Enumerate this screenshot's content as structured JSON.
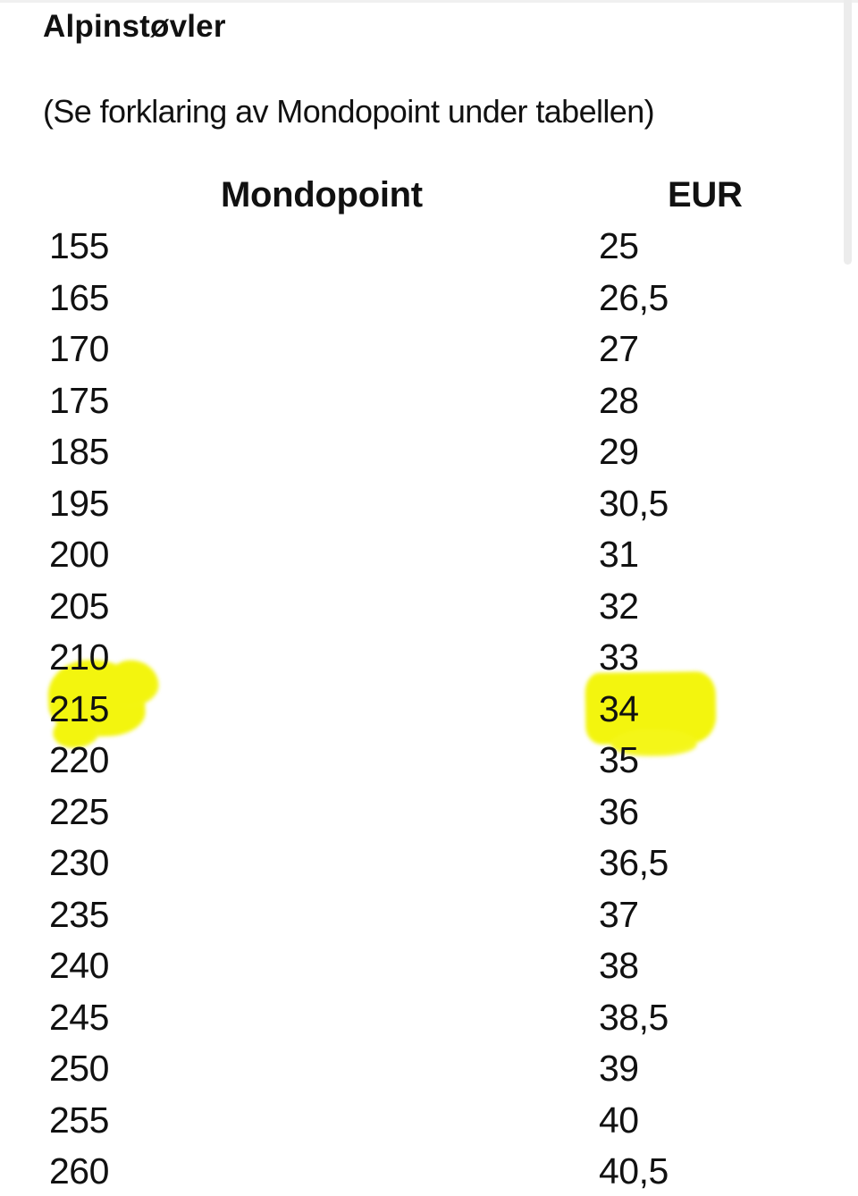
{
  "page": {
    "title": "Alpinstøvler",
    "subtitle": "(Se forklaring av Mondopoint under tabellen)"
  },
  "table": {
    "columns": [
      "Mondopoint",
      "EUR"
    ],
    "rows": [
      {
        "mondopoint": "155",
        "eur": "25",
        "highlighted": false
      },
      {
        "mondopoint": "165",
        "eur": "26,5",
        "highlighted": false
      },
      {
        "mondopoint": "170",
        "eur": "27",
        "highlighted": false
      },
      {
        "mondopoint": "175",
        "eur": "28",
        "highlighted": false
      },
      {
        "mondopoint": "185",
        "eur": "29",
        "highlighted": false
      },
      {
        "mondopoint": "195",
        "eur": "30,5",
        "highlighted": false
      },
      {
        "mondopoint": "200",
        "eur": "31",
        "highlighted": false
      },
      {
        "mondopoint": "205",
        "eur": "32",
        "highlighted": false
      },
      {
        "mondopoint": "210",
        "eur": "33",
        "highlighted": false
      },
      {
        "mondopoint": "215",
        "eur": "34",
        "highlighted": true
      },
      {
        "mondopoint": "220",
        "eur": "35",
        "highlighted": false
      },
      {
        "mondopoint": "225",
        "eur": "36",
        "highlighted": false
      },
      {
        "mondopoint": "230",
        "eur": "36,5",
        "highlighted": false
      },
      {
        "mondopoint": "235",
        "eur": "37",
        "highlighted": false
      },
      {
        "mondopoint": "240",
        "eur": "38",
        "highlighted": false
      },
      {
        "mondopoint": "245",
        "eur": "38,5",
        "highlighted": false
      },
      {
        "mondopoint": "250",
        "eur": "39",
        "highlighted": false
      },
      {
        "mondopoint": "255",
        "eur": "40",
        "highlighted": false
      },
      {
        "mondopoint": "260",
        "eur": "40,5",
        "highlighted": false
      }
    ]
  },
  "colors": {
    "background": "#FFFFFF",
    "text": "#111111",
    "highlight_yellow": "#F3F50E",
    "scrollbar": "#ECECEC"
  }
}
